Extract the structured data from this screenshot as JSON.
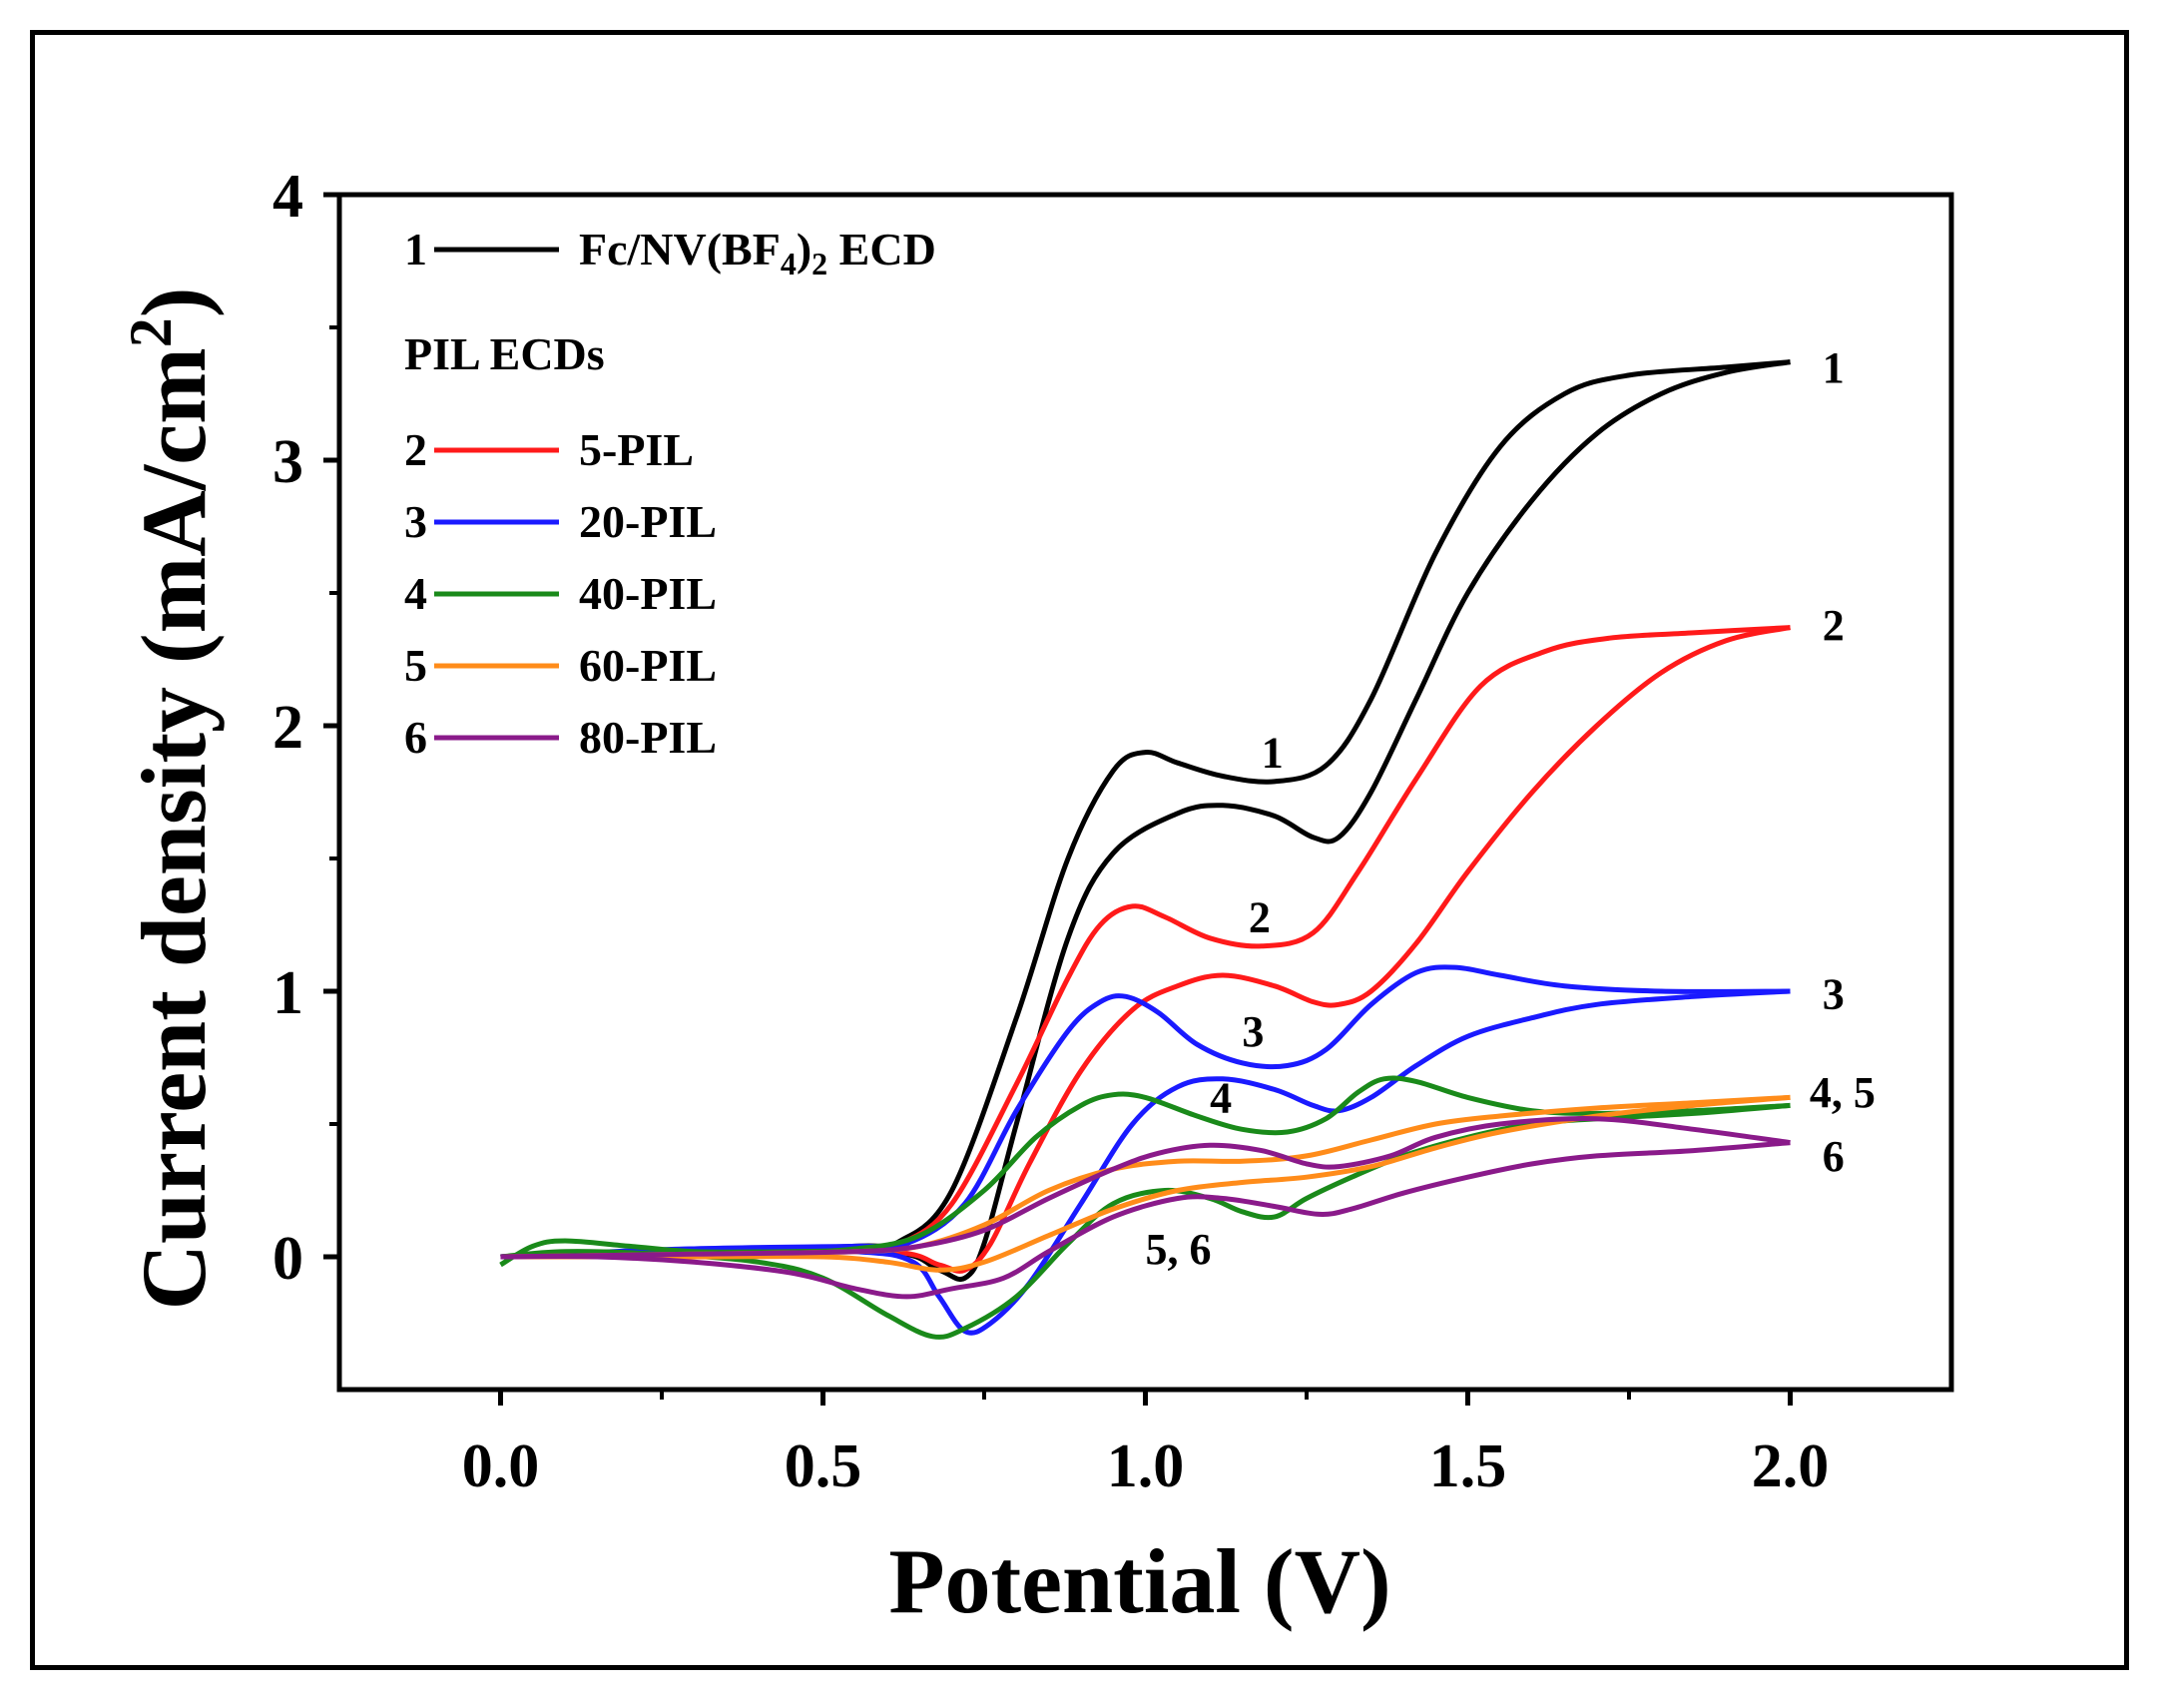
{
  "chart_data": {
    "type": "line",
    "xlabel": "Potential (V)",
    "ylabel": "Current density (mA/cm²)",
    "ylabel_parts": {
      "base": "Current density (mA/cm",
      "sup": "2",
      "close": ")"
    },
    "xlim": [
      -0.25,
      2.25
    ],
    "ylim": [
      -0.5,
      4.0
    ],
    "xticks": [
      0.0,
      0.5,
      1.0,
      1.5,
      2.0
    ],
    "xtick_labels": [
      "0.0",
      "0.5",
      "1.0",
      "1.5",
      "2.0"
    ],
    "yticks": [
      0,
      1,
      2,
      3,
      4
    ],
    "ytick_labels": [
      "0",
      "1",
      "2",
      "3",
      "4"
    ],
    "legend": {
      "placement": "top-left",
      "header_entry": {
        "number": "1",
        "label_parts": {
          "a": "Fc/NV(BF",
          "sub1": "4",
          "b": ")",
          "sub2": "2",
          "c": " ECD"
        },
        "color": "#000000"
      },
      "group_title": "PIL ECDs",
      "entries": [
        {
          "number": "2",
          "label": "5-PIL",
          "color": "#ff1a1a"
        },
        {
          "number": "3",
          "label": "20-PIL",
          "color": "#1a1aff"
        },
        {
          "number": "4",
          "label": "40-PIL",
          "color": "#1a8a1a"
        },
        {
          "number": "5",
          "label": "60-PIL",
          "color": "#ff8c1a"
        },
        {
          "number": "6",
          "label": "80-PIL",
          "color": "#8a1a8a"
        }
      ]
    },
    "series": [
      {
        "name": "Fc/NV(BF4)2 ECD",
        "color": "#000000",
        "forward": [
          [
            0,
            0
          ],
          [
            0.3,
            0.02
          ],
          [
            0.55,
            0.04
          ],
          [
            0.62,
            0.06
          ],
          [
            0.7,
            0.25
          ],
          [
            0.8,
            0.9
          ],
          [
            0.88,
            1.5
          ],
          [
            0.95,
            1.83
          ],
          [
            1.0,
            1.9
          ],
          [
            1.05,
            1.86
          ],
          [
            1.12,
            1.81
          ],
          [
            1.2,
            1.79
          ],
          [
            1.28,
            1.85
          ],
          [
            1.35,
            2.1
          ],
          [
            1.45,
            2.65
          ],
          [
            1.55,
            3.05
          ],
          [
            1.65,
            3.25
          ],
          [
            1.75,
            3.32
          ],
          [
            1.9,
            3.35
          ],
          [
            2.0,
            3.37
          ]
        ],
        "reverse": [
          [
            2.0,
            3.37
          ],
          [
            1.9,
            3.33
          ],
          [
            1.8,
            3.25
          ],
          [
            1.7,
            3.1
          ],
          [
            1.6,
            2.85
          ],
          [
            1.5,
            2.5
          ],
          [
            1.42,
            2.1
          ],
          [
            1.35,
            1.75
          ],
          [
            1.3,
            1.58
          ],
          [
            1.26,
            1.58
          ],
          [
            1.2,
            1.66
          ],
          [
            1.12,
            1.7
          ],
          [
            1.05,
            1.67
          ],
          [
            0.95,
            1.52
          ],
          [
            0.88,
            1.2
          ],
          [
            0.8,
            0.5
          ],
          [
            0.75,
            0.05
          ],
          [
            0.72,
            -0.08
          ],
          [
            0.68,
            -0.05
          ],
          [
            0.6,
            0.02
          ],
          [
            0.3,
            0.02
          ],
          [
            0.0,
            0.0
          ]
        ]
      },
      {
        "name": "5-PIL",
        "color": "#ff1a1a",
        "forward": [
          [
            0,
            0
          ],
          [
            0.3,
            0.02
          ],
          [
            0.55,
            0.03
          ],
          [
            0.62,
            0.05
          ],
          [
            0.7,
            0.2
          ],
          [
            0.8,
            0.65
          ],
          [
            0.88,
            1.05
          ],
          [
            0.93,
            1.25
          ],
          [
            0.98,
            1.32
          ],
          [
            1.03,
            1.28
          ],
          [
            1.1,
            1.2
          ],
          [
            1.18,
            1.17
          ],
          [
            1.26,
            1.22
          ],
          [
            1.33,
            1.45
          ],
          [
            1.42,
            1.8
          ],
          [
            1.52,
            2.15
          ],
          [
            1.62,
            2.28
          ],
          [
            1.72,
            2.33
          ],
          [
            1.85,
            2.35
          ],
          [
            2.0,
            2.37
          ]
        ],
        "reverse": [
          [
            2.0,
            2.37
          ],
          [
            1.9,
            2.32
          ],
          [
            1.8,
            2.2
          ],
          [
            1.7,
            2.0
          ],
          [
            1.6,
            1.75
          ],
          [
            1.5,
            1.45
          ],
          [
            1.42,
            1.18
          ],
          [
            1.35,
            1.0
          ],
          [
            1.3,
            0.95
          ],
          [
            1.26,
            0.96
          ],
          [
            1.2,
            1.02
          ],
          [
            1.12,
            1.06
          ],
          [
            1.05,
            1.02
          ],
          [
            0.98,
            0.93
          ],
          [
            0.9,
            0.7
          ],
          [
            0.82,
            0.35
          ],
          [
            0.76,
            0.05
          ],
          [
            0.72,
            -0.05
          ],
          [
            0.68,
            -0.03
          ],
          [
            0.6,
            0.02
          ],
          [
            0.3,
            0.02
          ],
          [
            0.0,
            0.0
          ]
        ]
      },
      {
        "name": "20-PIL",
        "color": "#1a1aff",
        "forward": [
          [
            0,
            0
          ],
          [
            0.3,
            0.03
          ],
          [
            0.55,
            0.04
          ],
          [
            0.63,
            0.05
          ],
          [
            0.72,
            0.2
          ],
          [
            0.8,
            0.55
          ],
          [
            0.88,
            0.85
          ],
          [
            0.93,
            0.96
          ],
          [
            0.97,
            0.98
          ],
          [
            1.02,
            0.92
          ],
          [
            1.08,
            0.8
          ],
          [
            1.15,
            0.73
          ],
          [
            1.22,
            0.72
          ],
          [
            1.28,
            0.78
          ],
          [
            1.35,
            0.95
          ],
          [
            1.42,
            1.07
          ],
          [
            1.48,
            1.09
          ],
          [
            1.55,
            1.06
          ],
          [
            1.65,
            1.02
          ],
          [
            1.8,
            1.0
          ],
          [
            2.0,
            1.0
          ]
        ],
        "reverse": [
          [
            2.0,
            1.0
          ],
          [
            1.85,
            0.98
          ],
          [
            1.7,
            0.95
          ],
          [
            1.6,
            0.9
          ],
          [
            1.5,
            0.83
          ],
          [
            1.42,
            0.72
          ],
          [
            1.35,
            0.6
          ],
          [
            1.3,
            0.55
          ],
          [
            1.26,
            0.57
          ],
          [
            1.2,
            0.63
          ],
          [
            1.12,
            0.67
          ],
          [
            1.05,
            0.64
          ],
          [
            0.98,
            0.5
          ],
          [
            0.9,
            0.2
          ],
          [
            0.82,
            -0.1
          ],
          [
            0.76,
            -0.25
          ],
          [
            0.72,
            -0.28
          ],
          [
            0.68,
            -0.15
          ],
          [
            0.64,
            -0.02
          ],
          [
            0.55,
            0.02
          ],
          [
            0.3,
            0.03
          ],
          [
            0.0,
            0.0
          ]
        ]
      },
      {
        "name": "40-PIL",
        "color": "#1a8a1a",
        "forward": [
          [
            0,
            -0.03
          ],
          [
            0.05,
            0.04
          ],
          [
            0.1,
            0.06
          ],
          [
            0.2,
            0.04
          ],
          [
            0.3,
            0.02
          ],
          [
            0.45,
            0.02
          ],
          [
            0.55,
            0.03
          ],
          [
            0.65,
            0.08
          ],
          [
            0.75,
            0.25
          ],
          [
            0.83,
            0.45
          ],
          [
            0.9,
            0.57
          ],
          [
            0.95,
            0.61
          ],
          [
            1.0,
            0.6
          ],
          [
            1.08,
            0.53
          ],
          [
            1.15,
            0.48
          ],
          [
            1.22,
            0.47
          ],
          [
            1.28,
            0.52
          ],
          [
            1.33,
            0.62
          ],
          [
            1.37,
            0.67
          ],
          [
            1.42,
            0.66
          ],
          [
            1.5,
            0.6
          ],
          [
            1.6,
            0.55
          ],
          [
            1.7,
            0.54
          ],
          [
            1.85,
            0.55
          ],
          [
            2.0,
            0.57
          ]
        ],
        "reverse": [
          [
            2.0,
            0.57
          ],
          [
            1.85,
            0.54
          ],
          [
            1.7,
            0.52
          ],
          [
            1.6,
            0.5
          ],
          [
            1.5,
            0.45
          ],
          [
            1.4,
            0.38
          ],
          [
            1.32,
            0.3
          ],
          [
            1.25,
            0.22
          ],
          [
            1.2,
            0.15
          ],
          [
            1.15,
            0.17
          ],
          [
            1.1,
            0.22
          ],
          [
            1.03,
            0.25
          ],
          [
            0.95,
            0.2
          ],
          [
            0.88,
            0.05
          ],
          [
            0.8,
            -0.15
          ],
          [
            0.72,
            -0.27
          ],
          [
            0.67,
            -0.3
          ],
          [
            0.6,
            -0.22
          ],
          [
            0.5,
            -0.08
          ],
          [
            0.4,
            -0.02
          ],
          [
            0.25,
            0.01
          ],
          [
            0.1,
            0.02
          ],
          [
            0.0,
            0.0
          ]
        ]
      },
      {
        "name": "60-PIL",
        "color": "#ff8c1a",
        "forward": [
          [
            0,
            0
          ],
          [
            0.3,
            0.01
          ],
          [
            0.55,
            0.02
          ],
          [
            0.65,
            0.04
          ],
          [
            0.75,
            0.12
          ],
          [
            0.85,
            0.25
          ],
          [
            0.95,
            0.33
          ],
          [
            1.05,
            0.36
          ],
          [
            1.15,
            0.36
          ],
          [
            1.25,
            0.38
          ],
          [
            1.35,
            0.44
          ],
          [
            1.45,
            0.5
          ],
          [
            1.55,
            0.53
          ],
          [
            1.7,
            0.56
          ],
          [
            1.85,
            0.58
          ],
          [
            2.0,
            0.6
          ]
        ],
        "reverse": [
          [
            2.0,
            0.6
          ],
          [
            1.85,
            0.57
          ],
          [
            1.7,
            0.53
          ],
          [
            1.55,
            0.47
          ],
          [
            1.45,
            0.41
          ],
          [
            1.35,
            0.34
          ],
          [
            1.25,
            0.3
          ],
          [
            1.15,
            0.28
          ],
          [
            1.05,
            0.25
          ],
          [
            0.95,
            0.18
          ],
          [
            0.85,
            0.08
          ],
          [
            0.75,
            -0.02
          ],
          [
            0.68,
            -0.05
          ],
          [
            0.6,
            -0.02
          ],
          [
            0.5,
            0.0
          ],
          [
            0.3,
            0.0
          ],
          [
            0.0,
            0.0
          ]
        ]
      },
      {
        "name": "80-PIL",
        "color": "#8a1a8a",
        "forward": [
          [
            0,
            0
          ],
          [
            0.3,
            0.01
          ],
          [
            0.55,
            0.02
          ],
          [
            0.65,
            0.04
          ],
          [
            0.75,
            0.1
          ],
          [
            0.85,
            0.22
          ],
          [
            0.95,
            0.33
          ],
          [
            1.02,
            0.39
          ],
          [
            1.1,
            0.42
          ],
          [
            1.18,
            0.4
          ],
          [
            1.25,
            0.35
          ],
          [
            1.3,
            0.34
          ],
          [
            1.38,
            0.38
          ],
          [
            1.45,
            0.45
          ],
          [
            1.55,
            0.5
          ],
          [
            1.7,
            0.52
          ],
          [
            1.85,
            0.48
          ],
          [
            2.0,
            0.43
          ]
        ],
        "reverse": [
          [
            2.0,
            0.43
          ],
          [
            1.85,
            0.4
          ],
          [
            1.7,
            0.38
          ],
          [
            1.6,
            0.35
          ],
          [
            1.5,
            0.3
          ],
          [
            1.4,
            0.24
          ],
          [
            1.32,
            0.18
          ],
          [
            1.27,
            0.16
          ],
          [
            1.2,
            0.19
          ],
          [
            1.12,
            0.22
          ],
          [
            1.05,
            0.22
          ],
          [
            0.95,
            0.15
          ],
          [
            0.85,
            0.02
          ],
          [
            0.78,
            -0.08
          ],
          [
            0.7,
            -0.12
          ],
          [
            0.63,
            -0.15
          ],
          [
            0.55,
            -0.12
          ],
          [
            0.45,
            -0.06
          ],
          [
            0.3,
            -0.02
          ],
          [
            0.15,
            0.0
          ],
          [
            0.0,
            0.0
          ]
        ]
      }
    ],
    "annotations": [
      {
        "text": "1",
        "x": 1.18,
        "y": 1.9
      },
      {
        "text": "2",
        "x": 1.16,
        "y": 1.28
      },
      {
        "text": "3",
        "x": 1.15,
        "y": 0.85
      },
      {
        "text": "4",
        "x": 1.1,
        "y": 0.6
      },
      {
        "text": "5, 6",
        "x": 1.0,
        "y": 0.03
      },
      {
        "text": "1",
        "x": 2.05,
        "y": 3.35
      },
      {
        "text": "2",
        "x": 2.05,
        "y": 2.38
      },
      {
        "text": "3",
        "x": 2.05,
        "y": 0.99
      },
      {
        "text": "4, 5",
        "x": 2.03,
        "y": 0.62
      },
      {
        "text": "6",
        "x": 2.05,
        "y": 0.38
      }
    ]
  }
}
